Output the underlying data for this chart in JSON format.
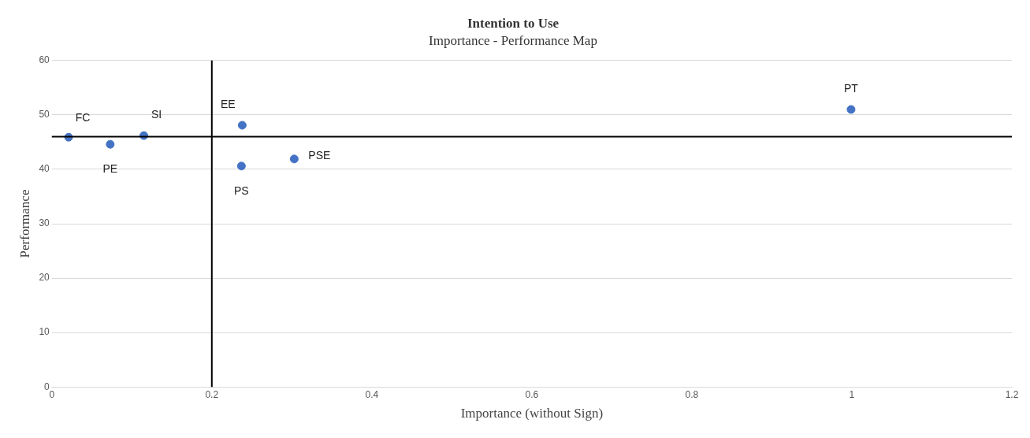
{
  "chart_data": {
    "type": "scatter",
    "title": "Intention to Use",
    "subtitle": "Importance - Performance Map",
    "xlabel": "Importance (without Sign)",
    "ylabel": "Performance",
    "x": [
      0.021,
      0.073,
      0.115,
      0.238,
      0.237,
      0.303,
      0.999
    ],
    "values": [
      45.9,
      44.6,
      46.2,
      48.1,
      40.6,
      41.9,
      51.0
    ],
    "color": "#4472c4",
    "annotations": [
      {
        "text": "FC",
        "x": 0.021,
        "y": 45.9
      },
      {
        "text": "PE",
        "x": 0.073,
        "y": 44.6
      },
      {
        "text": "SI",
        "x": 0.115,
        "y": 46.2
      },
      {
        "text": "EE",
        "x": 0.238,
        "y": 48.1
      },
      {
        "text": "PS",
        "x": 0.237,
        "y": 40.6
      },
      {
        "text": "PSE",
        "x": 0.303,
        "y": 41.9
      },
      {
        "text": "PT",
        "x": 0.999,
        "y": 51.0
      }
    ],
    "ref_lines": [
      {
        "axis": "x",
        "value": 0.2,
        "color": "#000000"
      },
      {
        "axis": "y",
        "value": 46,
        "color": "#000000"
      }
    ],
    "xlim": [
      0,
      1.2
    ],
    "xticks": [
      0,
      0.2,
      0.4,
      0.6,
      0.8,
      1,
      1.2
    ],
    "ylim": [
      0,
      60
    ],
    "yticks": [
      0,
      10,
      20,
      30,
      40,
      50,
      60
    ],
    "grid": "y",
    "legend": false,
    "marker": "circle"
  }
}
